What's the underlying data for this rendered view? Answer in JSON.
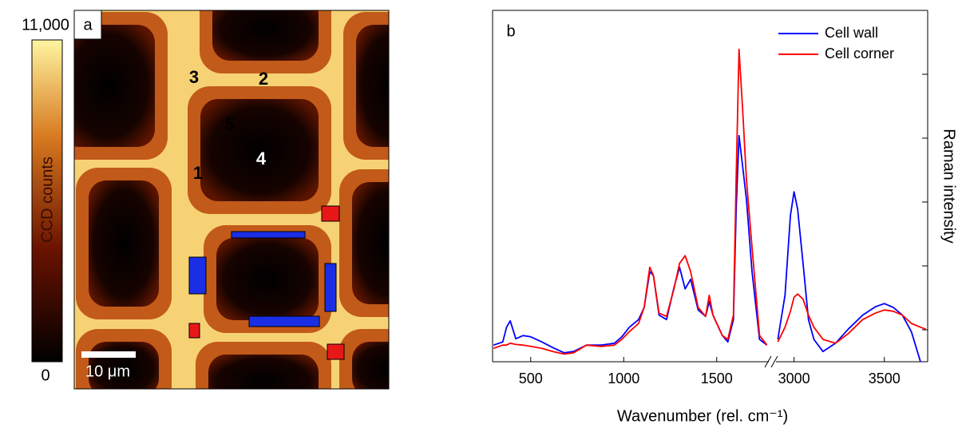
{
  "colorbar": {
    "label": "CCD counts",
    "lim": [
      0,
      11000
    ],
    "ticks": [
      0,
      {
        "value": 11000,
        "label": "11,000"
      }
    ]
  },
  "image": {
    "panel_label": "a",
    "scale_bar": "10 μm",
    "points": [
      "1",
      "2",
      "3",
      "4",
      "5"
    ]
  },
  "chart_data": {
    "type": "line",
    "panel_label": "b",
    "x_label": "Wavenumber (rel. cm⁻¹)",
    "y_label": "Raman intensity",
    "legend": "upper right",
    "ylim": [
      -0.5,
      5
    ],
    "yticks": [
      0,
      1,
      2,
      3,
      4,
      5
    ],
    "ytick_labels": false,
    "x_segments": [
      {
        "xlim": [
          295,
          1780
        ],
        "xticks": [
          500,
          1000,
          1500
        ]
      },
      {
        "xlim": [
          2900,
          3740
        ],
        "xticks": [
          3000,
          3500
        ]
      }
    ],
    "x": [
      300,
      350,
      370,
      390,
      420,
      460,
      500,
      560,
      620,
      680,
      730,
      800,
      880,
      950,
      990,
      1030,
      1080,
      1110,
      1140,
      1160,
      1190,
      1230,
      1270,
      1300,
      1330,
      1360,
      1400,
      1440,
      1460,
      1480,
      1530,
      1560,
      1590,
      1605,
      1620,
      1640,
      1660,
      1690,
      1730,
      1770,
      2910,
      2950,
      2980,
      3000,
      3020,
      3050,
      3080,
      3110,
      3160,
      3230,
      3300,
      3380,
      3450,
      3500,
      3550,
      3600,
      3650,
      3700,
      3730
    ],
    "series": [
      {
        "name": "Cell wall",
        "color": "#0000ff",
        "values": [
          -0.24,
          -0.19,
          0.04,
          0.14,
          -0.14,
          -0.09,
          -0.11,
          -0.19,
          -0.28,
          -0.36,
          -0.34,
          -0.24,
          -0.24,
          -0.21,
          -0.11,
          0.04,
          0.16,
          0.35,
          0.91,
          0.85,
          0.23,
          0.16,
          0.66,
          0.98,
          0.64,
          0.79,
          0.31,
          0.21,
          0.44,
          0.23,
          -0.09,
          -0.19,
          0.16,
          1.91,
          3.04,
          2.54,
          2.04,
          0.91,
          -0.15,
          -0.24,
          -0.15,
          0.54,
          1.79,
          2.16,
          1.89,
          1.04,
          0.16,
          -0.15,
          -0.34,
          -0.21,
          0.01,
          0.23,
          0.36,
          0.41,
          0.35,
          0.23,
          -0.03,
          -0.5,
          null
        ]
      },
      {
        "name": "Cell corner",
        "color": "#ff0000",
        "values": [
          -0.29,
          -0.24,
          -0.24,
          -0.21,
          -0.23,
          -0.24,
          -0.26,
          -0.29,
          -0.34,
          -0.38,
          -0.36,
          -0.24,
          -0.26,
          -0.24,
          -0.15,
          -0.03,
          0.1,
          0.35,
          0.98,
          0.85,
          0.26,
          0.21,
          0.64,
          1.04,
          1.16,
          0.91,
          0.35,
          0.21,
          0.54,
          0.23,
          -0.09,
          -0.15,
          0.23,
          2.41,
          4.39,
          3.41,
          2.35,
          1.29,
          -0.09,
          -0.24,
          -0.19,
          0.04,
          0.29,
          0.51,
          0.56,
          0.48,
          0.23,
          0.04,
          -0.15,
          -0.21,
          -0.06,
          0.16,
          0.26,
          0.31,
          0.29,
          0.23,
          0.1,
          0.04,
          0.01
        ]
      }
    ]
  }
}
